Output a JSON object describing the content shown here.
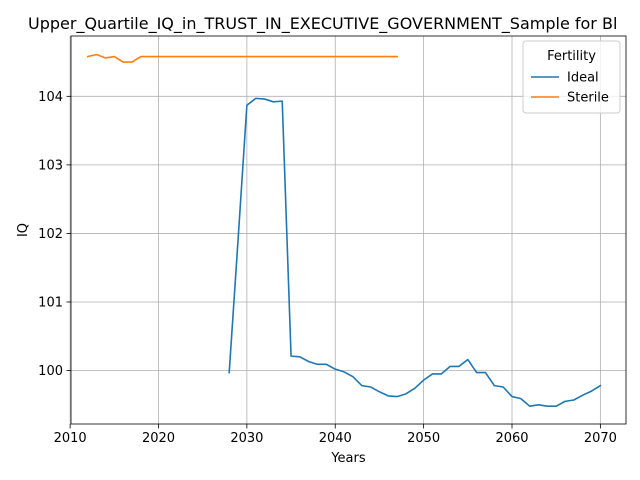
{
  "chart_data": {
    "type": "line",
    "title": "Upper_Quartile_IQ_in_TRUST_IN_EXECUTIVE_GOVERNMENT_Sample for Bl",
    "xlabel": "Years",
    "ylabel": "IQ",
    "xlim": [
      2010.1,
      2072.9
    ],
    "ylim": [
      99.22,
      104.88
    ],
    "xticks": [
      2010,
      2020,
      2030,
      2040,
      2050,
      2060,
      2070
    ],
    "yticks": [
      100,
      101,
      102,
      103,
      104
    ],
    "grid": true,
    "legend": {
      "title": "Fertility",
      "placement": "top-right"
    },
    "series": [
      {
        "name": "Ideal",
        "color": "#1f77b4",
        "x": [
          2028,
          2029,
          2030,
          2031,
          2032,
          2033,
          2034,
          2035,
          2036,
          2037,
          2038,
          2039,
          2040,
          2041,
          2042,
          2043,
          2044,
          2045,
          2046,
          2047,
          2048,
          2049,
          2050,
          2051,
          2052,
          2053,
          2054,
          2055,
          2056,
          2057,
          2058,
          2059,
          2060,
          2061,
          2062,
          2063,
          2064,
          2065,
          2066,
          2067,
          2068,
          2069,
          2070
        ],
        "y": [
          99.97,
          101.9,
          103.87,
          103.97,
          103.96,
          103.92,
          103.93,
          100.21,
          100.2,
          100.13,
          100.09,
          100.09,
          100.02,
          99.98,
          99.91,
          99.78,
          99.76,
          99.69,
          99.63,
          99.62,
          99.66,
          99.74,
          99.86,
          99.95,
          99.95,
          100.06,
          100.06,
          100.16,
          99.97,
          99.97,
          99.78,
          99.76,
          99.62,
          99.59,
          99.48,
          99.5,
          99.48,
          99.48,
          99.55,
          99.57,
          99.64,
          99.7,
          99.78
        ]
      },
      {
        "name": "Sterile",
        "color": "#ff7f0e",
        "x": [
          2012,
          2013,
          2014,
          2015,
          2016,
          2017,
          2018,
          2019,
          2020,
          2021,
          2022,
          2023,
          2024,
          2025,
          2026,
          2027,
          2028,
          2029,
          2030,
          2031,
          2032,
          2033,
          2034,
          2035,
          2036,
          2037,
          2038,
          2039,
          2040,
          2041,
          2042,
          2043,
          2044,
          2045,
          2046,
          2047
        ],
        "y": [
          104.58,
          104.61,
          104.56,
          104.58,
          104.5,
          104.5,
          104.58,
          104.58,
          104.58,
          104.58,
          104.58,
          104.58,
          104.58,
          104.58,
          104.58,
          104.58,
          104.58,
          104.58,
          104.58,
          104.58,
          104.58,
          104.58,
          104.58,
          104.58,
          104.58,
          104.58,
          104.58,
          104.58,
          104.58,
          104.58,
          104.58,
          104.58,
          104.58,
          104.58,
          104.58,
          104.58
        ]
      }
    ]
  }
}
